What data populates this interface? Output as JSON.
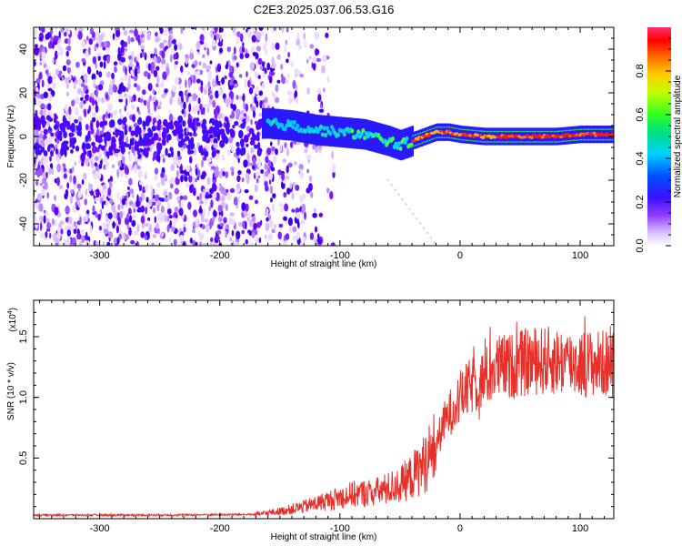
{
  "title": "C2E3.2025.037.06.53.G16",
  "chart_data": [
    {
      "type": "heatmap",
      "xlabel": "Height of straight line (km)",
      "ylabel": "Frequency (Hz)",
      "xlim": [
        -355,
        128
      ],
      "ylim": [
        -50,
        50
      ],
      "xticks": [
        -300,
        -200,
        -100,
        0,
        100
      ],
      "yticks": [
        -40,
        -20,
        0,
        20,
        40
      ],
      "xtick_labels": [
        "-300",
        "-200",
        "-100",
        "0",
        "100"
      ],
      "ytick_labels": [
        "-40",
        "-20",
        "0",
        "20",
        "40"
      ],
      "colorbar": {
        "label": "Normalized spectral amplitude",
        "range": [
          0,
          1
        ],
        "ticks": [
          0.0,
          0.2,
          0.4,
          0.6,
          0.8
        ],
        "tick_labels": [
          "0.0",
          "0.2",
          "0.4",
          "0.6",
          "0.8"
        ],
        "colors": [
          "#ffffff",
          "#c9a8ff",
          "#6a1cf0",
          "#2020ff",
          "#00c8ff",
          "#00e070",
          "#40ff20",
          "#c8ff00",
          "#ffd000",
          "#ff7000",
          "#ff0000",
          "#ff3070"
        ]
      },
      "ridge": {
        "description_points_x": [
          -160,
          -140,
          -120,
          -100,
          -80,
          -60,
          -50,
          -40,
          -30,
          -20,
          -10,
          0,
          20,
          40,
          60,
          80,
          100,
          128
        ],
        "description_points_y": [
          6,
          5,
          3,
          2,
          1,
          -2,
          -4,
          -2,
          0,
          2,
          2,
          1,
          0,
          0,
          0,
          0,
          1,
          1
        ]
      }
    },
    {
      "type": "line",
      "xlabel": "Height of straight line (km)",
      "ylabel": "SNR (10 * v/v)",
      "y_multiplier": "(x10",
      "y_multiplier_exp": "4",
      "xlim": [
        -355,
        128
      ],
      "ylim": [
        0,
        1.8
      ],
      "xticks": [
        -300,
        -200,
        -100,
        0,
        100
      ],
      "yticks": [
        0.5,
        1.0,
        1.5
      ],
      "xtick_labels": [
        "-300",
        "-200",
        "-100",
        "0",
        "100"
      ],
      "ytick_labels": [
        "0.5",
        "1.0",
        "1.5"
      ],
      "series": [
        {
          "name": "SNR",
          "color": "#e8302a",
          "anchors_x": [
            -355,
            -250,
            -170,
            -150,
            -130,
            -110,
            -90,
            -70,
            -50,
            -40,
            -30,
            -20,
            -15,
            -10,
            0,
            10,
            20,
            30,
            40,
            60,
            80,
            100,
            128
          ],
          "anchors_y": [
            0.03,
            0.03,
            0.035,
            0.06,
            0.1,
            0.15,
            0.2,
            0.22,
            0.28,
            0.35,
            0.45,
            0.6,
            0.75,
            0.85,
            1.0,
            1.1,
            1.15,
            1.25,
            1.25,
            1.3,
            1.3,
            1.28,
            1.28
          ]
        }
      ]
    }
  ]
}
